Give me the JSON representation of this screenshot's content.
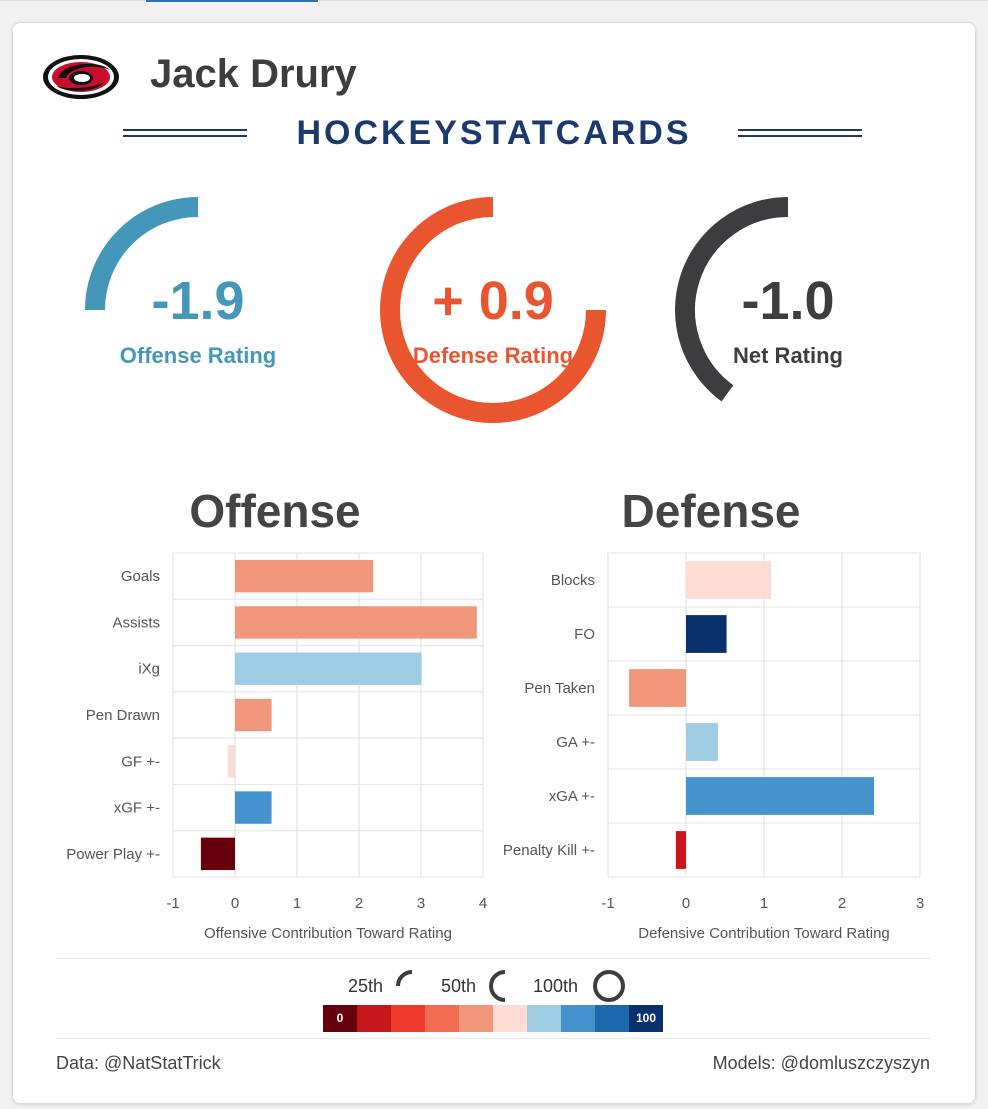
{
  "player": {
    "name": "Jack Drury"
  },
  "brand": {
    "name": "HOCKEYSTATCARDS",
    "color": "#1b3a6b"
  },
  "team": {
    "logo": "hurricanes-logo"
  },
  "ratings": [
    {
      "id": "offense",
      "value": "-1.9",
      "label": "Offense Rating",
      "color": "#4597b9",
      "percentile": 25
    },
    {
      "id": "defense",
      "value": "+ 0.9",
      "label": "Defense Rating",
      "color": "#e8552e",
      "percentile": 75
    },
    {
      "id": "net",
      "value": "-1.0",
      "label": "Net Rating",
      "color": "#3d3d3f",
      "percentile": 40
    }
  ],
  "chart_data": [
    {
      "type": "bar",
      "orientation": "horizontal",
      "title": "Offense",
      "xlabel": "Offensive Contribution Toward Rating",
      "xlim": [
        -1,
        4
      ],
      "xticks": [
        "-1",
        "0",
        "1",
        "2",
        "3",
        "4"
      ],
      "categories": [
        "Goals",
        "Assists",
        "iXg",
        "Pen Drawn",
        "GF +-",
        "xGF +-",
        "Power Play +-"
      ],
      "values": [
        2.23,
        3.9,
        3.01,
        0.59,
        -0.12,
        0.59,
        -0.55
      ],
      "colors": [
        "#f0967a",
        "#f0967a",
        "#9ecde3",
        "#f0967a",
        "#fcdcd3",
        "#4593cc",
        "#67000d"
      ],
      "grid": true
    },
    {
      "type": "bar",
      "orientation": "horizontal",
      "title": "Defense",
      "xlabel": "Defensive Contribution Toward Rating",
      "xlim": [
        -1,
        3
      ],
      "xticks": [
        "-1",
        "0",
        "1",
        "2",
        "3"
      ],
      "categories": [
        "Blocks",
        "FO",
        "Pen Taken",
        "GA +-",
        "xGA +-",
        "Penalty Kill +-"
      ],
      "values": [
        1.09,
        0.52,
        -0.73,
        0.41,
        2.41,
        -0.13
      ],
      "colors": [
        "#fcdcd3",
        "#08306b",
        "#f0967a",
        "#9ecde3",
        "#4593cc",
        "#c7171c"
      ],
      "grid": true
    }
  ],
  "legend": {
    "markers": [
      {
        "label": "25th",
        "percentile": 25
      },
      {
        "label": "50th",
        "percentile": 50
      },
      {
        "label": "100th",
        "percentile": 100
      }
    ],
    "scale": [
      {
        "color": "#67000d",
        "text": "0"
      },
      {
        "color": "#c7171c",
        "text": ""
      },
      {
        "color": "#ef3b2c",
        "text": ""
      },
      {
        "color": "#f26b53",
        "text": ""
      },
      {
        "color": "#f0967a",
        "text": ""
      },
      {
        "color": "#fcdcd3",
        "text": ""
      },
      {
        "color": "#9ecde3",
        "text": ""
      },
      {
        "color": "#4593cc",
        "text": ""
      },
      {
        "color": "#1b68ad",
        "text": ""
      },
      {
        "color": "#08306b",
        "text": "100"
      }
    ]
  },
  "footer": {
    "left": "Data: @NatStatTrick",
    "right": "Models: @domluszczyszyn"
  }
}
